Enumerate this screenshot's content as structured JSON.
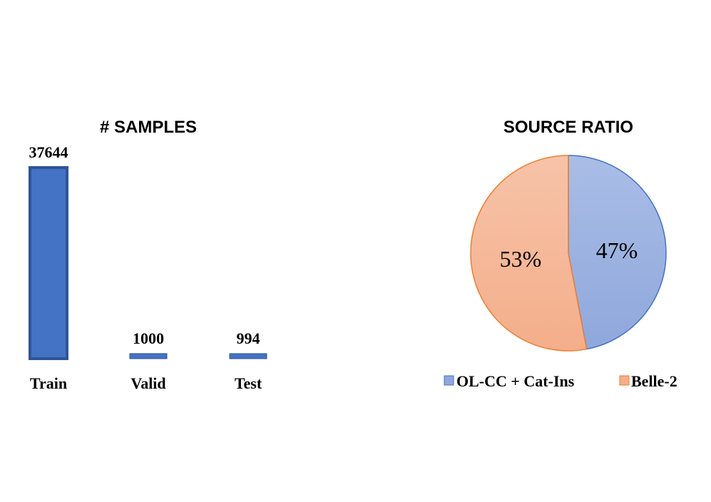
{
  "chart_data": [
    {
      "type": "bar",
      "title": "# SAMPLES",
      "categories": [
        "Train",
        "Valid",
        "Test"
      ],
      "values": [
        37644,
        1000,
        994
      ],
      "xlabel": "",
      "ylabel": "",
      "grid": false,
      "colors": {
        "bar_fill": "#4472C4",
        "bar_edge": "#2F5597"
      }
    },
    {
      "type": "pie",
      "title": "SOURCE RATIO",
      "labels": [
        "OL-CC + Cat-Ins",
        "Belle-2"
      ],
      "values": [
        47,
        53
      ],
      "value_labels": [
        "47%",
        "53%"
      ],
      "legend_position": "bottom",
      "colors": {
        "slices": [
          "#8FA8DC",
          "#F4AE8A"
        ],
        "slices_light": [
          "#A9BDE6",
          "#F7C3A8"
        ],
        "edges": [
          "#4472C4",
          "#ED7D31"
        ]
      }
    }
  ]
}
